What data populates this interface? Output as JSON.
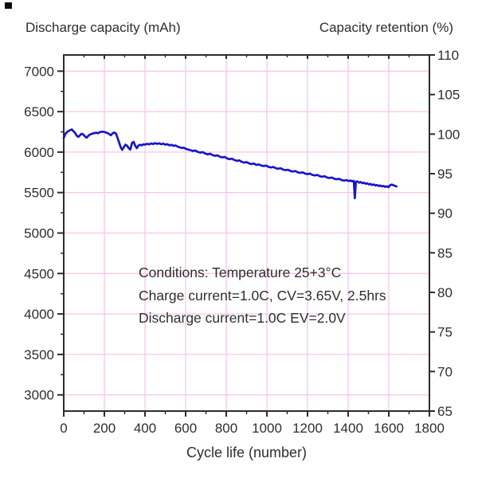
{
  "figure": {
    "annotation": {
      "line1": "Conditions: Temperature 25+3°C",
      "line2": "Charge current=1.0C, CV=3.65V, 2.5hrs",
      "line3": "Discharge current=1.0C EV=2.0V"
    }
  },
  "colors": {
    "curve_blue": "#1716cb",
    "grid_pink": "#f6c6ea",
    "frame_dark": "#2c2c2c",
    "text_dark": "#2e2e2e",
    "background": "#ffffff"
  },
  "chart_data": {
    "type": "line",
    "title": "",
    "xlabel": "Cycle life (number)",
    "ylabel_left": "Discharge capacity (mAh)",
    "ylabel_right": "Capacity retention (%)",
    "xlim": [
      0,
      1800
    ],
    "ylim_left": [
      2800,
      7200
    ],
    "ylim_right": [
      65,
      110
    ],
    "x_major_ticks": [
      0,
      200,
      400,
      600,
      800,
      1000,
      1200,
      1400,
      1600,
      1800
    ],
    "x_minor_ticks": [
      100,
      300,
      500,
      700,
      900,
      1100,
      1300,
      1500,
      1700
    ],
    "y_left_major_ticks": [
      7000,
      6500,
      6000,
      5500,
      5000,
      4500,
      4000,
      3500,
      3000
    ],
    "y_left_minor_ticks": [
      6750,
      6250,
      5750,
      5250,
      4750,
      4250,
      3750,
      3250
    ],
    "y_right_major_ticks": [
      110,
      105,
      100,
      95,
      90,
      85,
      80,
      75,
      70,
      65
    ],
    "grid": {
      "horizontal": "at left-axis major ticks",
      "vertical": "at x-axis major ticks",
      "legend": "none"
    },
    "series": [
      {
        "name": "discharge-capacity",
        "axis": "left",
        "color": "#1716cb",
        "points": [
          [
            0,
            6175
          ],
          [
            8,
            6225
          ],
          [
            16,
            6248
          ],
          [
            24,
            6262
          ],
          [
            32,
            6272
          ],
          [
            40,
            6280
          ],
          [
            48,
            6258
          ],
          [
            56,
            6236
          ],
          [
            64,
            6202
          ],
          [
            72,
            6188
          ],
          [
            80,
            6208
          ],
          [
            88,
            6226
          ],
          [
            96,
            6218
          ],
          [
            104,
            6196
          ],
          [
            112,
            6178
          ],
          [
            120,
            6198
          ],
          [
            128,
            6216
          ],
          [
            136,
            6224
          ],
          [
            144,
            6230
          ],
          [
            152,
            6234
          ],
          [
            160,
            6240
          ],
          [
            168,
            6232
          ],
          [
            176,
            6244
          ],
          [
            184,
            6250
          ],
          [
            192,
            6252
          ],
          [
            200,
            6248
          ],
          [
            208,
            6242
          ],
          [
            216,
            6234
          ],
          [
            224,
            6222
          ],
          [
            232,
            6208
          ],
          [
            240,
            6230
          ],
          [
            248,
            6242
          ],
          [
            256,
            6232
          ],
          [
            264,
            6182
          ],
          [
            272,
            6122
          ],
          [
            280,
            6062
          ],
          [
            288,
            6028
          ],
          [
            296,
            6062
          ],
          [
            304,
            6092
          ],
          [
            312,
            6078
          ],
          [
            320,
            6048
          ],
          [
            328,
            6032
          ],
          [
            336,
            6112
          ],
          [
            344,
            6126
          ],
          [
            352,
            6078
          ],
          [
            360,
            6048
          ],
          [
            368,
            6082
          ],
          [
            376,
            6090
          ],
          [
            384,
            6084
          ],
          [
            392,
            6096
          ],
          [
            400,
            6092
          ],
          [
            410,
            6102
          ],
          [
            420,
            6096
          ],
          [
            430,
            6106
          ],
          [
            440,
            6100
          ],
          [
            450,
            6110
          ],
          [
            460,
            6102
          ],
          [
            470,
            6108
          ],
          [
            480,
            6098
          ],
          [
            490,
            6104
          ],
          [
            500,
            6092
          ],
          [
            510,
            6098
          ],
          [
            520,
            6084
          ],
          [
            530,
            6090
          ],
          [
            540,
            6078
          ],
          [
            550,
            6082
          ],
          [
            560,
            6068
          ],
          [
            570,
            6060
          ],
          [
            580,
            6050
          ],
          [
            590,
            6054
          ],
          [
            600,
            6042
          ],
          [
            612,
            6032
          ],
          [
            624,
            6024
          ],
          [
            636,
            6014
          ],
          [
            648,
            6020
          ],
          [
            660,
            6002
          ],
          [
            672,
            5994
          ],
          [
            684,
            6000
          ],
          [
            696,
            5982
          ],
          [
            708,
            5972
          ],
          [
            720,
            5980
          ],
          [
            732,
            5964
          ],
          [
            744,
            5954
          ],
          [
            756,
            5960
          ],
          [
            768,
            5944
          ],
          [
            780,
            5934
          ],
          [
            792,
            5940
          ],
          [
            804,
            5922
          ],
          [
            816,
            5912
          ],
          [
            828,
            5918
          ],
          [
            840,
            5902
          ],
          [
            852,
            5892
          ],
          [
            864,
            5898
          ],
          [
            876,
            5880
          ],
          [
            888,
            5870
          ],
          [
            900,
            5876
          ],
          [
            912,
            5860
          ],
          [
            924,
            5852
          ],
          [
            936,
            5858
          ],
          [
            948,
            5842
          ],
          [
            960,
            5848
          ],
          [
            972,
            5834
          ],
          [
            984,
            5828
          ],
          [
            996,
            5834
          ],
          [
            1008,
            5818
          ],
          [
            1020,
            5810
          ],
          [
            1032,
            5816
          ],
          [
            1044,
            5800
          ],
          [
            1056,
            5794
          ],
          [
            1068,
            5800
          ],
          [
            1080,
            5784
          ],
          [
            1092,
            5777
          ],
          [
            1104,
            5782
          ],
          [
            1116,
            5767
          ],
          [
            1128,
            5760
          ],
          [
            1140,
            5766
          ],
          [
            1152,
            5750
          ],
          [
            1164,
            5744
          ],
          [
            1176,
            5750
          ],
          [
            1188,
            5734
          ],
          [
            1200,
            5728
          ],
          [
            1212,
            5734
          ],
          [
            1224,
            5718
          ],
          [
            1236,
            5712
          ],
          [
            1248,
            5718
          ],
          [
            1260,
            5702
          ],
          [
            1272,
            5696
          ],
          [
            1284,
            5702
          ],
          [
            1296,
            5686
          ],
          [
            1308,
            5680
          ],
          [
            1320,
            5686
          ],
          [
            1332,
            5670
          ],
          [
            1344,
            5664
          ],
          [
            1356,
            5670
          ],
          [
            1368,
            5654
          ],
          [
            1380,
            5648
          ],
          [
            1392,
            5654
          ],
          [
            1404,
            5642
          ],
          [
            1412,
            5650
          ],
          [
            1420,
            5638
          ],
          [
            1428,
            5644
          ],
          [
            1433,
            5430
          ],
          [
            1438,
            5632
          ],
          [
            1446,
            5638
          ],
          [
            1454,
            5622
          ],
          [
            1462,
            5630
          ],
          [
            1470,
            5616
          ],
          [
            1478,
            5622
          ],
          [
            1486,
            5608
          ],
          [
            1494,
            5614
          ],
          [
            1502,
            5600
          ],
          [
            1510,
            5606
          ],
          [
            1518,
            5594
          ],
          [
            1526,
            5600
          ],
          [
            1534,
            5588
          ],
          [
            1542,
            5594
          ],
          [
            1550,
            5582
          ],
          [
            1558,
            5588
          ],
          [
            1566,
            5576
          ],
          [
            1574,
            5582
          ],
          [
            1582,
            5570
          ],
          [
            1590,
            5578
          ],
          [
            1598,
            5566
          ],
          [
            1606,
            5590
          ],
          [
            1614,
            5598
          ],
          [
            1622,
            5592
          ],
          [
            1630,
            5584
          ],
          [
            1638,
            5576
          ]
        ]
      }
    ]
  }
}
